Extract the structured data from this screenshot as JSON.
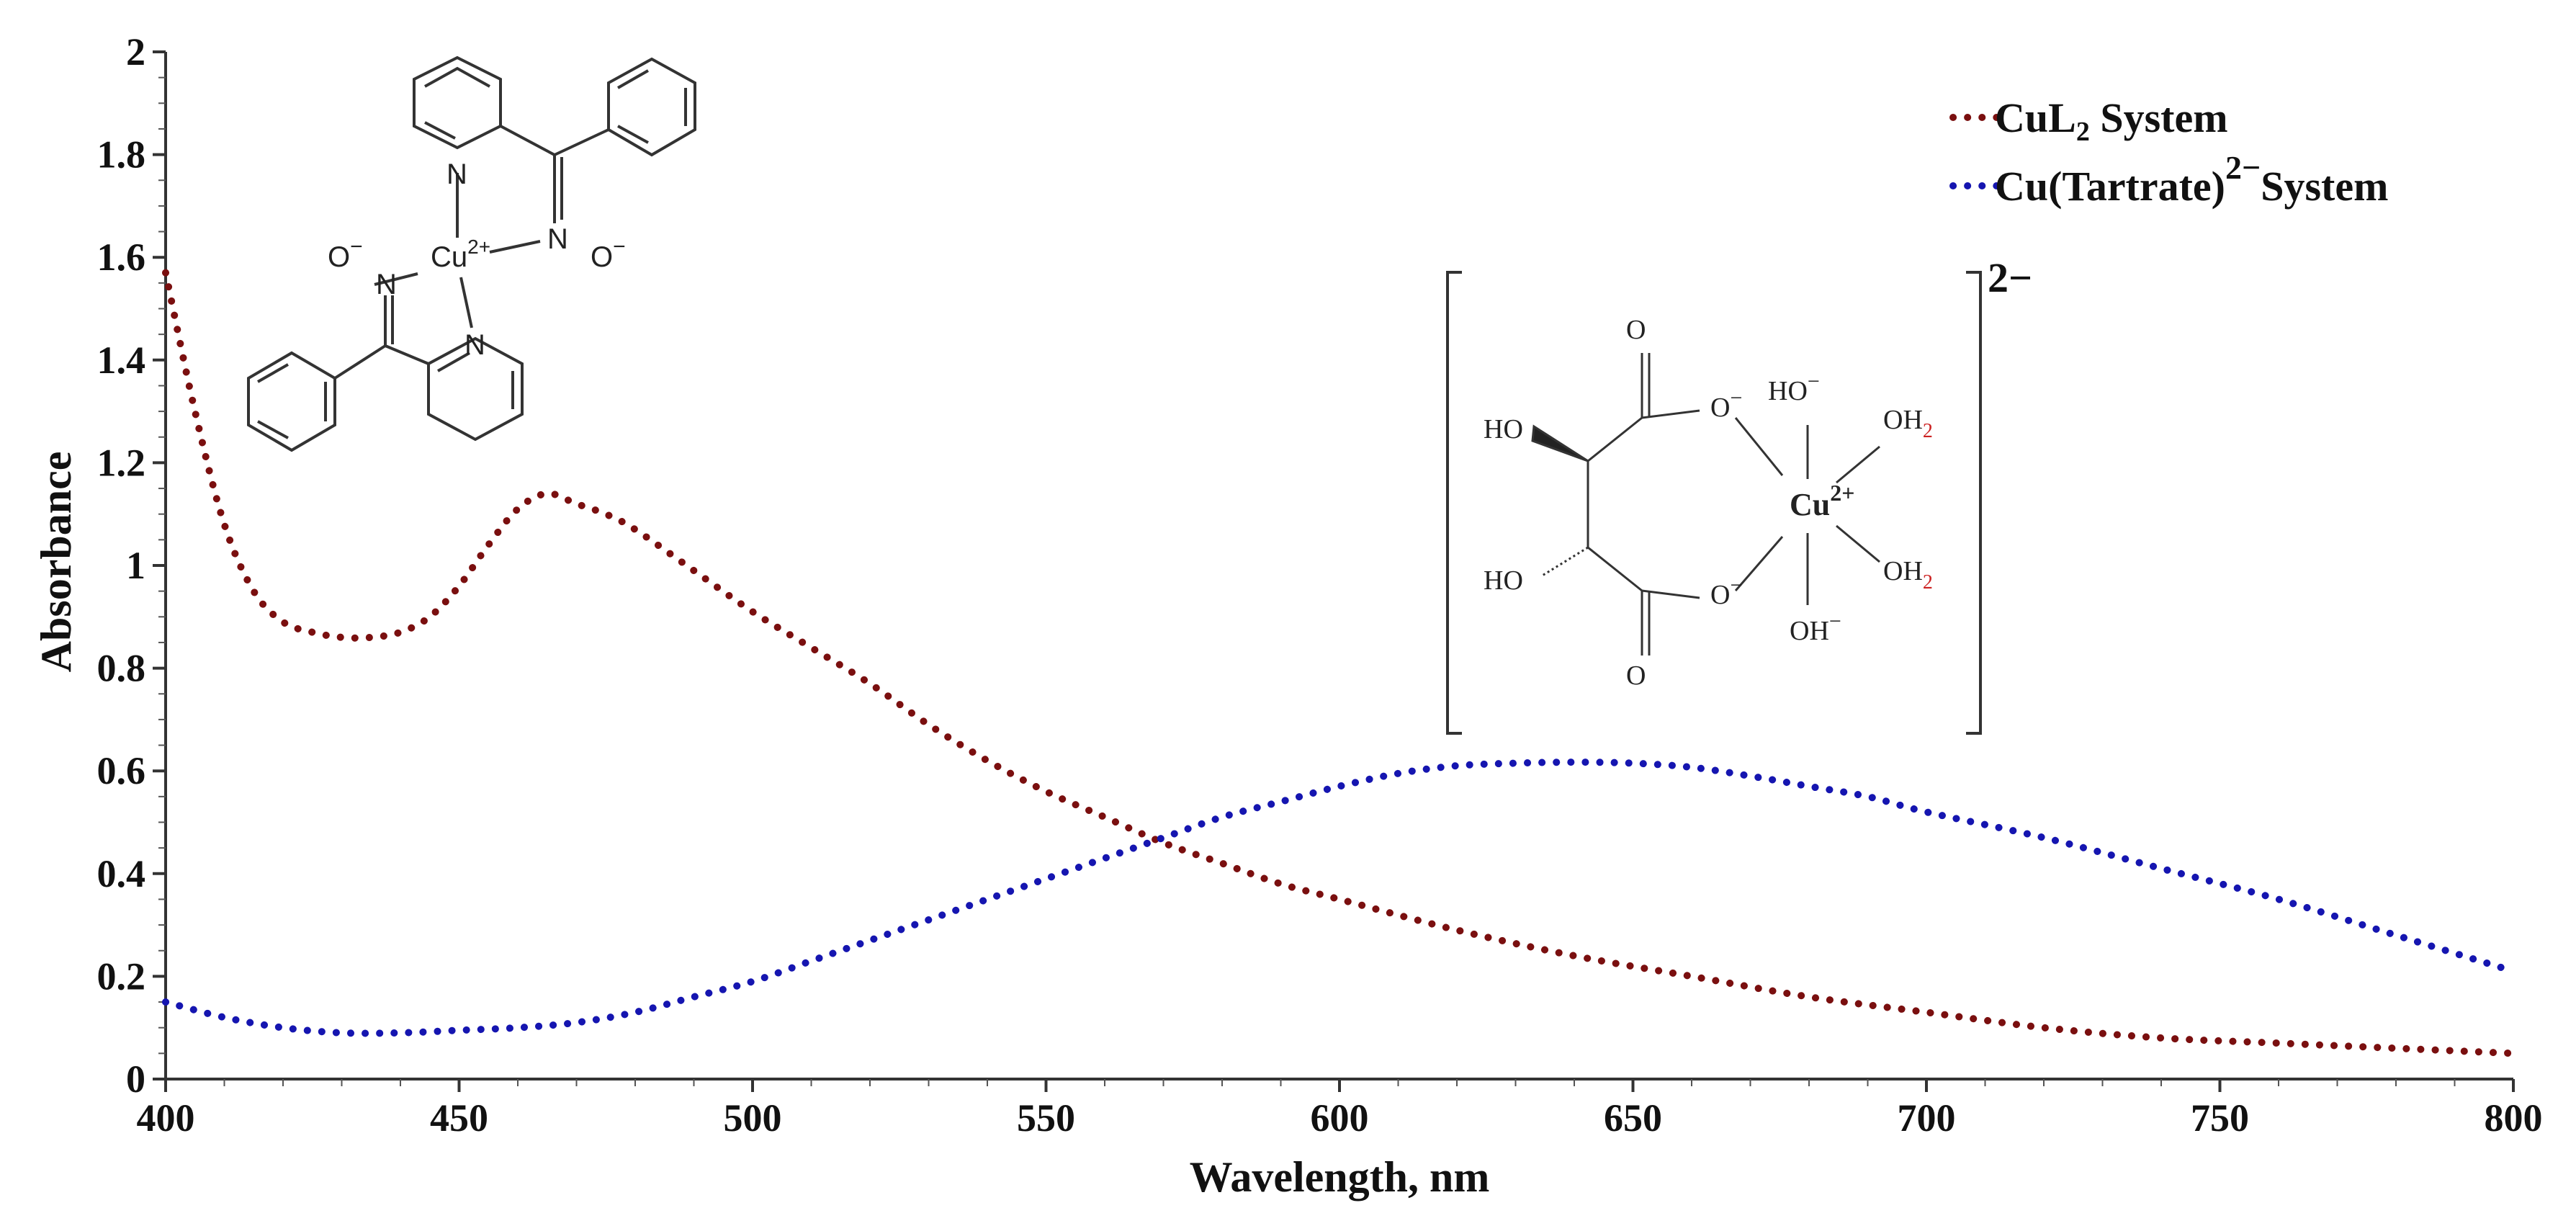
{
  "chart_data": {
    "type": "line",
    "xlabel": "Wavelength, nm",
    "ylabel": "Absorbance",
    "xlim": [
      400,
      800
    ],
    "ylim": [
      0,
      2
    ],
    "x_ticks": [
      "400",
      "450",
      "500",
      "550",
      "600",
      "650",
      "700",
      "750",
      "800"
    ],
    "y_ticks": [
      "0",
      "0.2",
      "0.4",
      "0.6",
      "0.8",
      "1",
      "1.2",
      "1.4",
      "1.6",
      "1.8",
      "2"
    ],
    "grid": false,
    "legend_position": "top-right",
    "line_style": "dotted",
    "series": [
      {
        "name_main": "CuL",
        "name_sub": "2",
        "name_rest": " System",
        "color": "#7a0f0f",
        "x": [
          400,
          405,
          410,
          415,
          420,
          425,
          430,
          435,
          440,
          445,
          450,
          455,
          460,
          465,
          470,
          475,
          480,
          490,
          500,
          510,
          520,
          530,
          540,
          550,
          560,
          570,
          580,
          590,
          600,
          620,
          640,
          660,
          680,
          700,
          720,
          740,
          760,
          780,
          800
        ],
        "values": [
          1.57,
          1.3,
          1.08,
          0.95,
          0.89,
          0.87,
          0.86,
          0.86,
          0.87,
          0.9,
          0.96,
          1.04,
          1.11,
          1.14,
          1.12,
          1.1,
          1.07,
          0.99,
          0.91,
          0.84,
          0.77,
          0.69,
          0.62,
          0.56,
          0.51,
          0.46,
          0.42,
          0.38,
          0.35,
          0.29,
          0.24,
          0.2,
          0.16,
          0.13,
          0.1,
          0.08,
          0.07,
          0.06,
          0.05
        ]
      },
      {
        "name_main": "Cu(Tartrate)",
        "name_sup": "2−",
        "name_rest": "System",
        "color": "#1515b0",
        "x": [
          400,
          410,
          420,
          430,
          440,
          450,
          460,
          470,
          480,
          490,
          500,
          510,
          520,
          530,
          540,
          550,
          560,
          570,
          580,
          590,
          600,
          610,
          620,
          630,
          640,
          650,
          660,
          670,
          680,
          690,
          700,
          720,
          740,
          760,
          780,
          800
        ],
        "values": [
          0.15,
          0.12,
          0.1,
          0.09,
          0.09,
          0.095,
          0.1,
          0.11,
          0.13,
          0.16,
          0.19,
          0.23,
          0.27,
          0.31,
          0.35,
          0.39,
          0.43,
          0.47,
          0.51,
          0.54,
          0.57,
          0.595,
          0.61,
          0.615,
          0.617,
          0.615,
          0.607,
          0.59,
          0.57,
          0.55,
          0.52,
          0.47,
          0.41,
          0.35,
          0.28,
          0.21
        ]
      }
    ]
  },
  "cu_complex_structure": {
    "center": "Cu",
    "center_charge": "2+",
    "nitrogen": "N",
    "oxide": "O",
    "minus": "−"
  },
  "tartrate_complex_structure": {
    "center": "Cu",
    "center_charge": "2+",
    "overall_charge": "2−",
    "ho_top": "HO",
    "ho_bottom": "HO",
    "carbonyl_o_top": "O",
    "carbonyl_o_bottom": "O",
    "carboxylate_o_top": "O",
    "carboxylate_o_bottom": "O",
    "minus": "−",
    "hydroxide_top": "HO",
    "hydroxide_bottom": "OH",
    "water_top": "OH",
    "water_bottom": "OH",
    "water_sub": "2",
    "hydroxyl_color": "#cc2222"
  }
}
